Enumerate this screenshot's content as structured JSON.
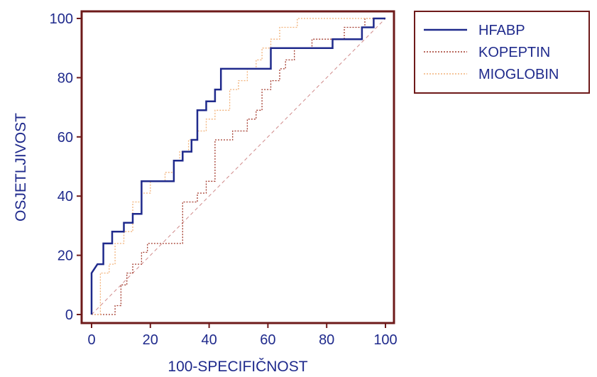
{
  "chart_data": {
    "type": "line",
    "title": "",
    "xlabel": "100-SPECIFIČNOST",
    "ylabel": "OSJETLJIVOST",
    "xlim": [
      0,
      100
    ],
    "ylim": [
      0,
      100
    ],
    "xticks": [
      "0",
      "20",
      "40",
      "60",
      "80",
      "100"
    ],
    "yticks": [
      "0",
      "20",
      "40",
      "60",
      "80",
      "100"
    ],
    "grid": false,
    "legend_position": "top-right",
    "reference_line": {
      "x": [
        0,
        100
      ],
      "y": [
        0,
        100
      ],
      "color": "#d08a8a",
      "style": "dashed"
    },
    "series": [
      {
        "name": "HFABP",
        "color": "#1f2a8c",
        "style": "solid",
        "x": [
          0,
          0,
          2,
          2,
          4,
          4,
          7,
          7,
          11,
          11,
          14,
          14,
          17,
          17,
          28,
          28,
          31,
          31,
          34,
          34,
          36,
          36,
          39,
          39,
          42,
          42,
          44,
          44,
          61,
          61,
          80,
          80,
          82,
          82,
          90,
          90,
          92,
          92,
          94,
          94,
          96,
          96,
          100
        ],
        "y": [
          0,
          14,
          17,
          17,
          17,
          24,
          24,
          28,
          28,
          31,
          31,
          34,
          34,
          45,
          45,
          52,
          52,
          55,
          55,
          59,
          59,
          69,
          69,
          72,
          72,
          76,
          76,
          83,
          83,
          90,
          90,
          90,
          90,
          93,
          93,
          93,
          93,
          97,
          97,
          97,
          97,
          100,
          100
        ]
      },
      {
        "name": "KOPEPTIN",
        "color": "#a33a2c",
        "style": "dotted",
        "x": [
          0,
          2,
          8,
          8,
          10,
          10,
          12,
          12,
          14,
          14,
          17,
          17,
          19,
          19,
          31,
          31,
          36,
          36,
          39,
          39,
          42,
          42,
          48,
          48,
          53,
          53,
          56,
          56,
          58,
          58,
          61,
          61,
          64,
          64,
          66,
          66,
          69,
          69,
          75,
          75,
          86,
          86,
          90,
          90,
          93,
          93,
          100
        ],
        "y": [
          0,
          0,
          0,
          3,
          3,
          10,
          10,
          14,
          14,
          17,
          17,
          21,
          21,
          24,
          24,
          38,
          38,
          41,
          41,
          45,
          45,
          59,
          59,
          62,
          62,
          66,
          66,
          69,
          69,
          76,
          76,
          79,
          79,
          83,
          83,
          86,
          86,
          90,
          90,
          93,
          93,
          97,
          97,
          97,
          97,
          100,
          100
        ]
      },
      {
        "name": "MIOGLOBIN",
        "color": "#f2b27a",
        "style": "dotted",
        "x": [
          0,
          3,
          3,
          6,
          6,
          8,
          8,
          11,
          11,
          14,
          14,
          17,
          17,
          20,
          20,
          25,
          25,
          28,
          28,
          30,
          30,
          33,
          33,
          36,
          36,
          39,
          39,
          42,
          42,
          47,
          47,
          50,
          50,
          53,
          53,
          56,
          56,
          58,
          58,
          61,
          61,
          64,
          64,
          67,
          67,
          70,
          70,
          72,
          72,
          75,
          75,
          90,
          90,
          100
        ],
        "y": [
          0,
          0,
          14,
          14,
          17,
          17,
          24,
          24,
          28,
          28,
          38,
          38,
          41,
          41,
          45,
          45,
          48,
          48,
          52,
          52,
          55,
          55,
          59,
          59,
          62,
          62,
          66,
          66,
          69,
          69,
          76,
          76,
          79,
          79,
          83,
          83,
          86,
          86,
          90,
          90,
          93,
          93,
          97,
          97,
          97,
          97,
          100,
          100,
          100,
          100,
          100,
          100,
          100,
          100
        ]
      }
    ]
  }
}
